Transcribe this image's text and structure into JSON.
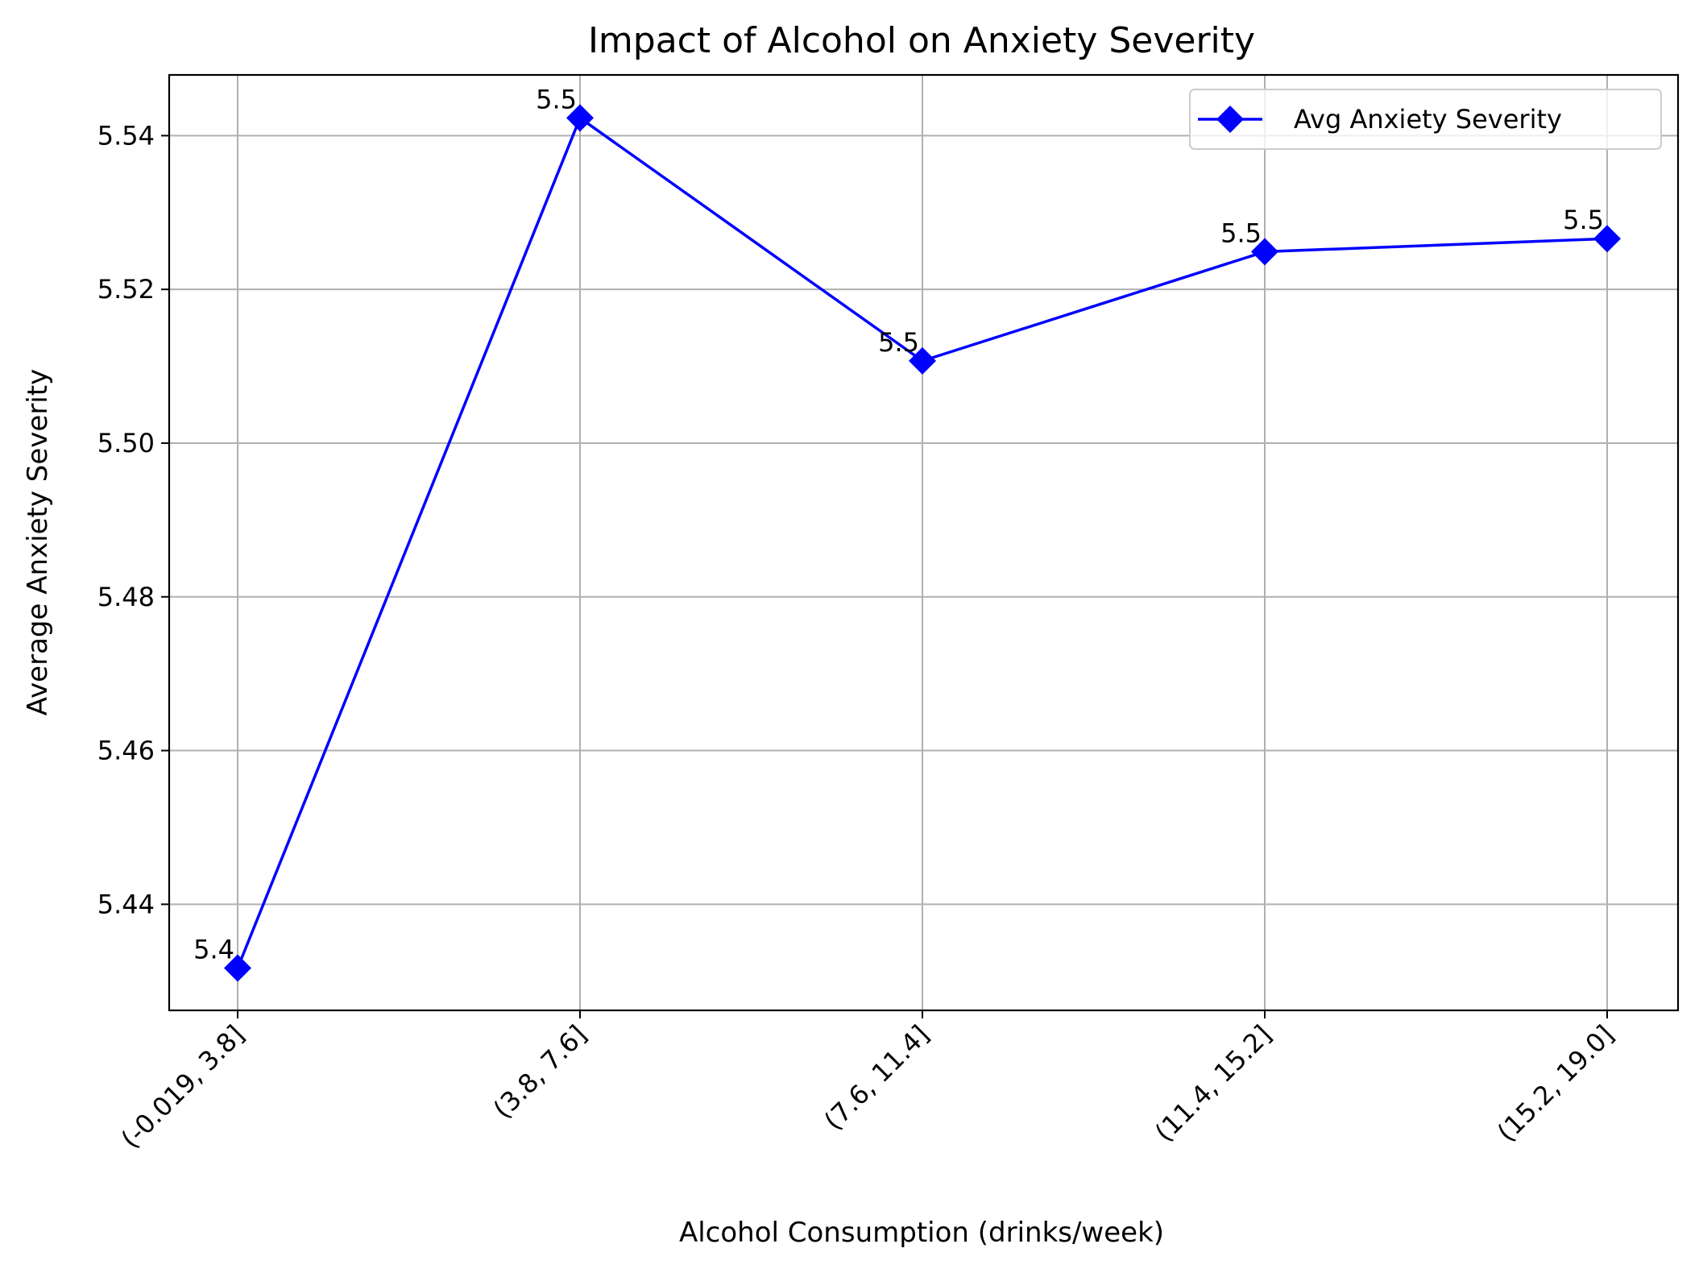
{
  "chart_data": {
    "type": "line",
    "title": "Impact of Alcohol on Anxiety Severity",
    "xlabel": "Alcohol Consumption (drinks/week)",
    "ylabel": "Average Anxiety Severity",
    "categories": [
      "(-0.019, 3.8]",
      "(3.8, 7.6]",
      "(7.6, 11.4]",
      "(11.4, 15.2]",
      "(15.2, 19.0]"
    ],
    "series": [
      {
        "name": "Avg Anxiety Severity",
        "values": [
          5.4317,
          5.5423,
          5.5107,
          5.5249,
          5.5266
        ],
        "labels": [
          "5.4",
          "5.5",
          "5.5",
          "5.5",
          "5.5"
        ],
        "color": "#0000ff",
        "marker": "diamond"
      }
    ],
    "ylim": [
      5.4262,
      5.5479
    ],
    "yticks": [
      5.44,
      5.46,
      5.48,
      5.5,
      5.52,
      5.54
    ],
    "ytick_labels": [
      "5.44",
      "5.46",
      "5.48",
      "5.50",
      "5.52",
      "5.54"
    ],
    "grid": true,
    "legend_position": "top-right",
    "xtick_rotation": 45
  }
}
